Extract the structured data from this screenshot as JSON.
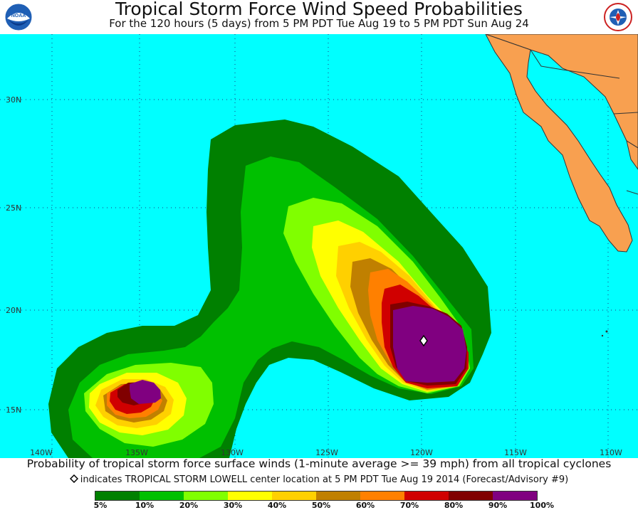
{
  "header": {
    "title": "Tropical Storm Force Wind Speed Probabilities",
    "subtitle": "For the 120 hours (5 days) from 5 PM PDT Tue Aug 19 to 5 PM PDT Sun Aug 24"
  },
  "logos": {
    "left": "NOAA",
    "right": "NATIONAL WEATHER SERVICE"
  },
  "map": {
    "lat_labels": [
      "30N",
      "25N",
      "20N",
      "15N"
    ],
    "lon_labels": [
      "140W",
      "135W",
      "130W",
      "125W",
      "120W",
      "115W",
      "110W"
    ],
    "ocean_color": "#00ffff",
    "land_color": "#f8a050",
    "storm_marker": "diamond-icon"
  },
  "footer": {
    "main": "Probability of tropical storm force surface winds (1-minute average >= 39 mph) from all tropical cyclones",
    "note": "indicates TROPICAL STORM LOWELL center location at 5 PM PDT Tue Aug 19 2014 (Forecast/Advisory #9)"
  },
  "legend": {
    "labels": [
      "5%",
      "10%",
      "20%",
      "30%",
      "40%",
      "50%",
      "60%",
      "70%",
      "80%",
      "90%",
      "100%"
    ],
    "colors": [
      "#008000",
      "#00c000",
      "#80ff00",
      "#ffff00",
      "#ffd000",
      "#c08000",
      "#ff8000",
      "#d00000",
      "#800000",
      "#800080"
    ]
  }
}
